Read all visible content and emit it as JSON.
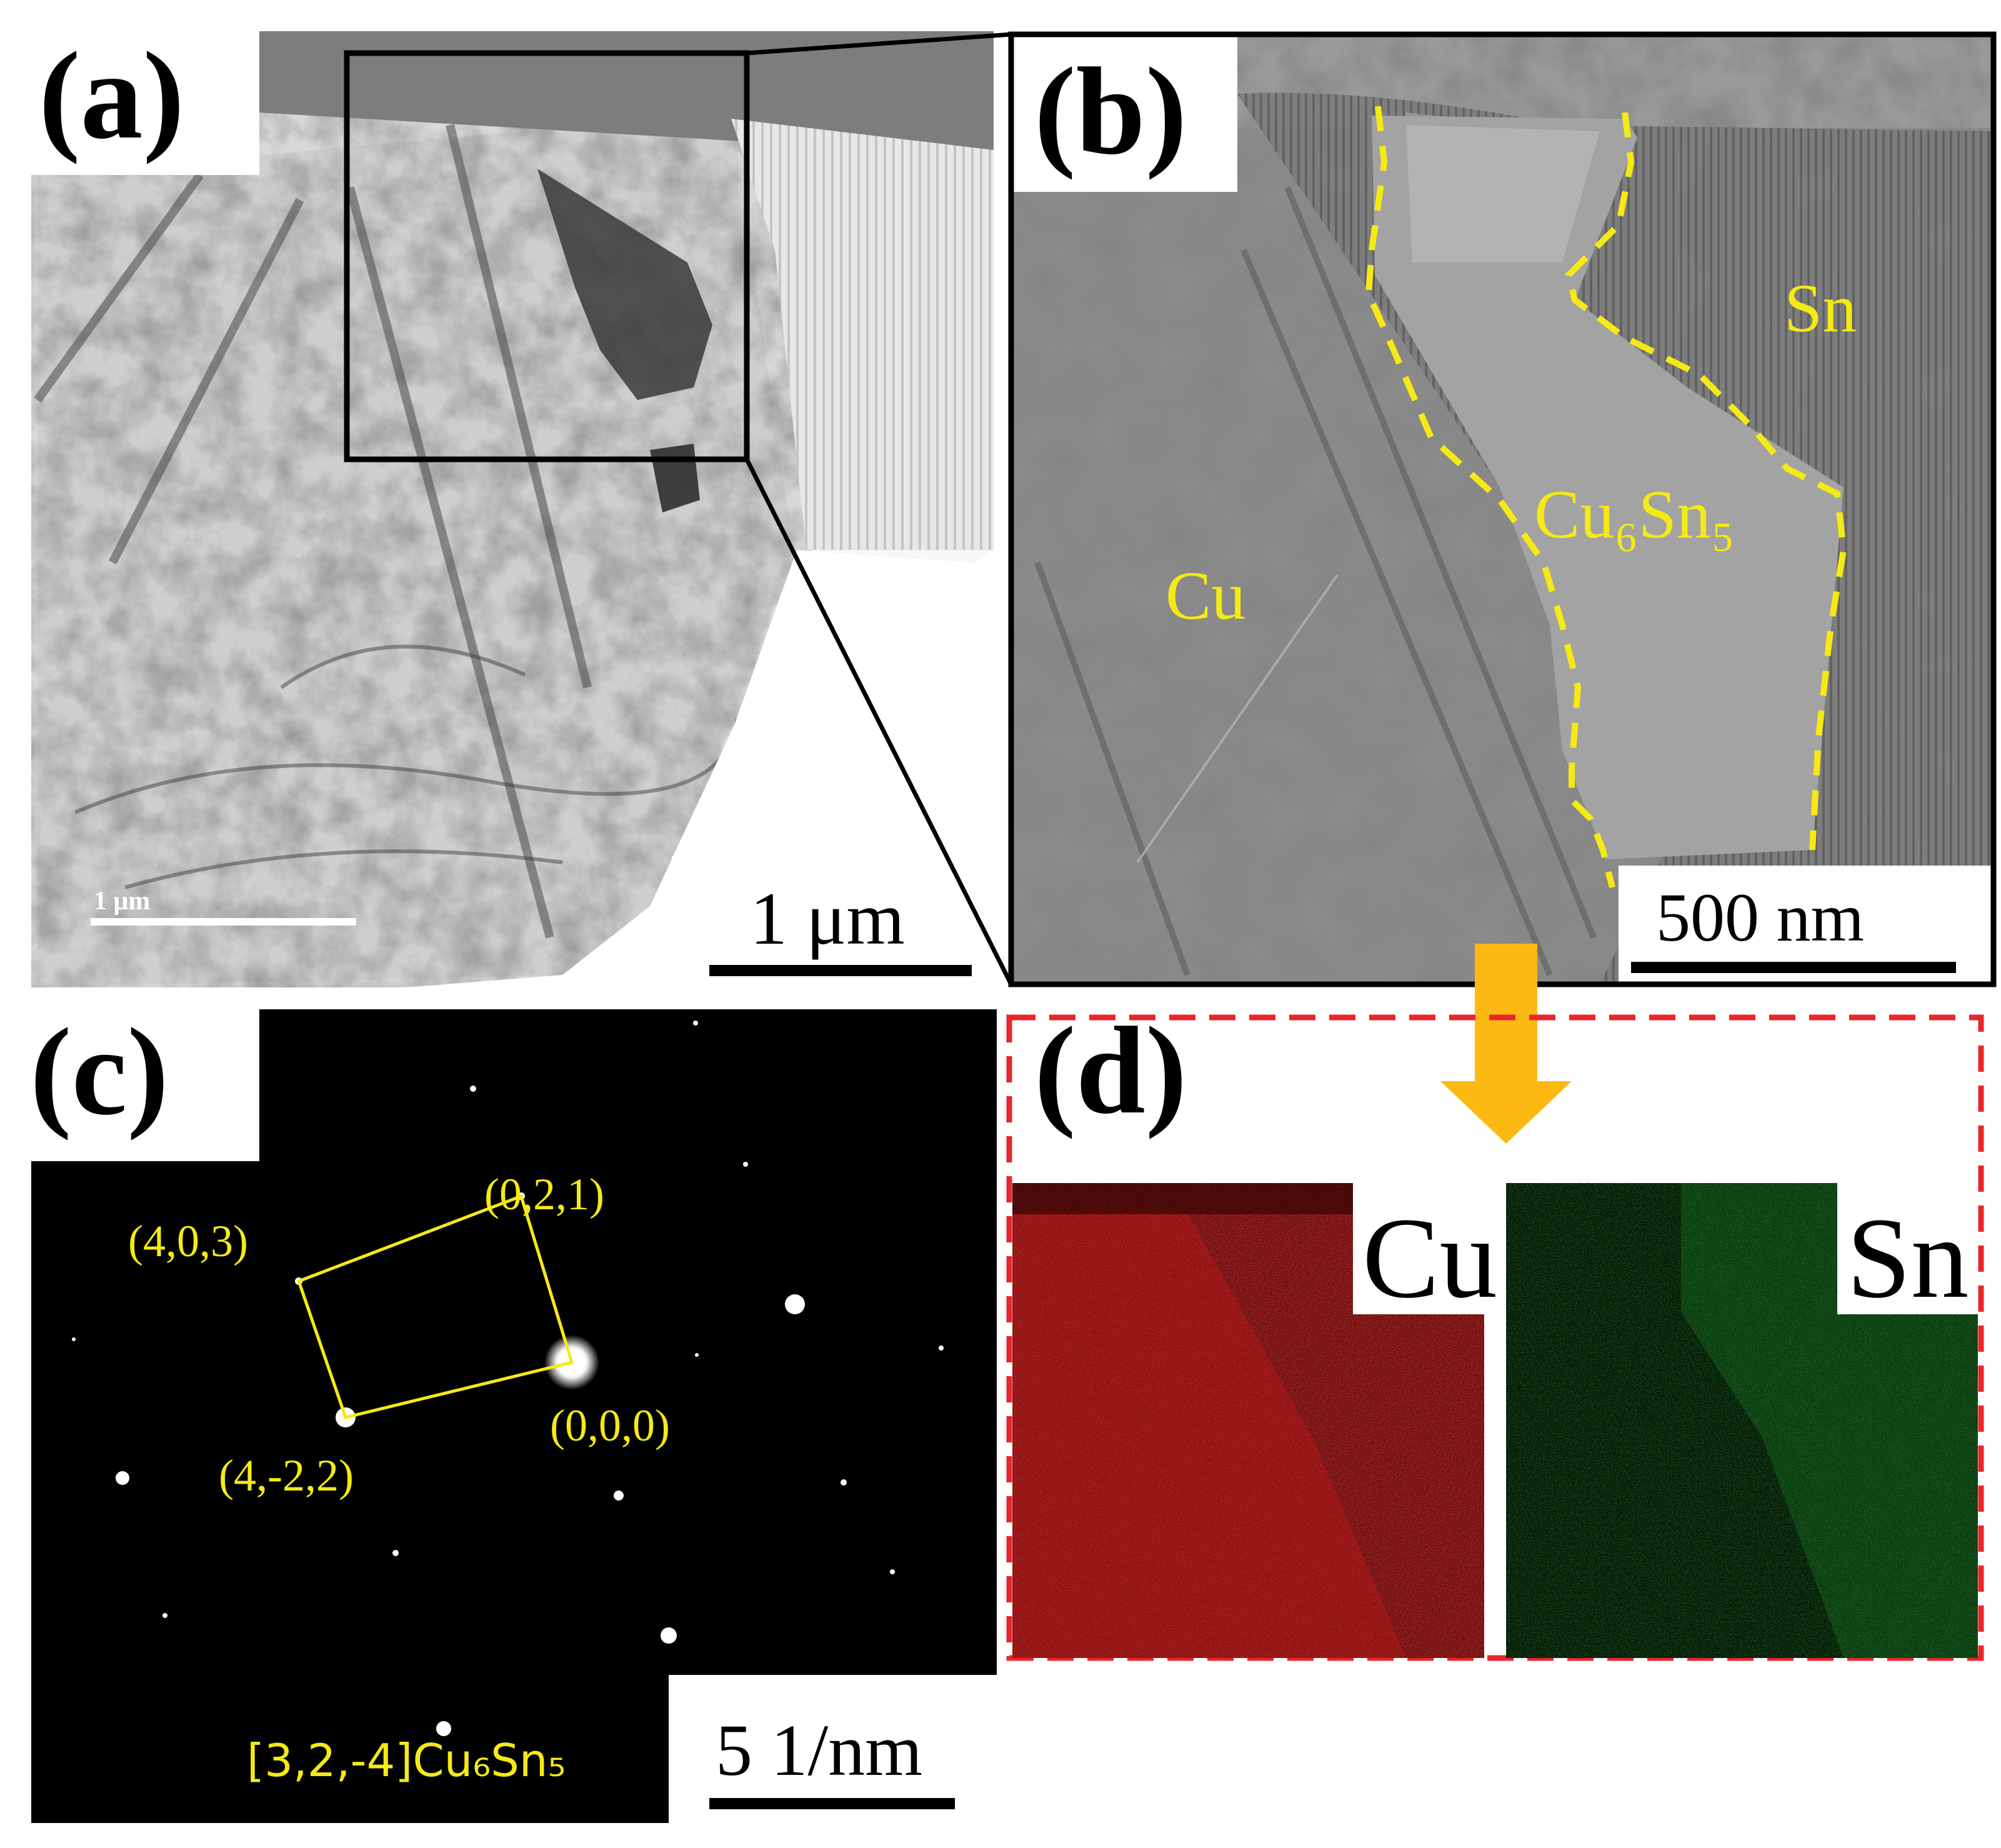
{
  "colors": {
    "overlay_yellow": "#f5ea14",
    "arrow_orange": "#fdb913",
    "frame_red": "#e8262c",
    "map_cu": "#c81a1a",
    "map_sn": "#1f8a2a"
  },
  "panel_a": {
    "label": "(a)",
    "inset_scalebar_text": "1 μm",
    "scalebar_text": "1 μm"
  },
  "panel_b": {
    "label": "(b)",
    "region_labels": {
      "sn": "Sn",
      "cu6sn5": "Cu₆Sn₅",
      "cu": "Cu"
    },
    "scalebar_text": "500 nm"
  },
  "panel_c": {
    "label": "(c)",
    "spot_labels": {
      "s021": "(0,2,1)",
      "s403": "(4,0,3)",
      "s000": "(0,0,0)",
      "s4m22": "(4,-2,2)"
    },
    "zone_axis": "[3,2,-4]Cu₆Sn₅",
    "scalebar_text": "5 1/nm"
  },
  "panel_d": {
    "label": "(d)",
    "map_cu_label": "Cu",
    "map_sn_label": "Sn"
  }
}
